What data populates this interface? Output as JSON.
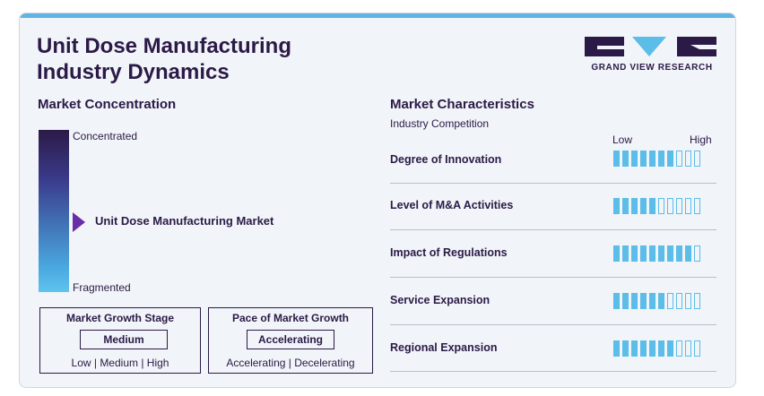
{
  "title": "Unit Dose Manufacturing Industry Dynamics",
  "logo": {
    "text": "GRAND VIEW RESEARCH"
  },
  "concentration": {
    "heading": "Market Concentration",
    "top_label": "Concentrated",
    "bottom_label": "Fragmented",
    "market_label": "Unit Dose Manufacturing Market"
  },
  "growth_stage": {
    "title": "Market Growth Stage",
    "value": "Medium",
    "options": "Low | Medium | High"
  },
  "growth_pace": {
    "title": "Pace of Market Growth",
    "value": "Accelerating",
    "options": "Accelerating | Decelerating"
  },
  "characteristics": {
    "heading": "Market Characteristics",
    "subheading": "Industry Competition",
    "low_label": "Low",
    "high_label": "High",
    "segments_total": 10,
    "rows": [
      {
        "label": "Degree of Innovation",
        "level": 7
      },
      {
        "label": "Level of M&A Activities",
        "level": 5
      },
      {
        "label": "Impact of Regulations",
        "level": 9
      },
      {
        "label": "Service Expansion",
        "level": 6
      },
      {
        "label": "Regional Expansion",
        "level": 7
      }
    ]
  },
  "colors": {
    "dark": "#2b1a47",
    "accent": "#5bbde8",
    "pointer": "#6a2da8"
  }
}
